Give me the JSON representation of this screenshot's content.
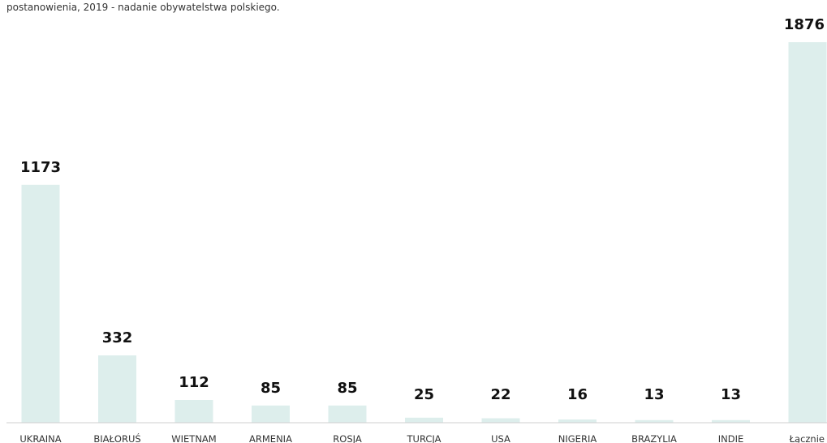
{
  "caption": "postanowienia, 2019 - nadanie obywatelstwa polskiego.",
  "colors": {
    "bar": "#ddeeec",
    "axis": "#cfcfcf",
    "value_text": "#111111",
    "label_text": "#333333"
  },
  "chart_data": {
    "type": "bar",
    "categories": [
      "UKRAINA",
      "BIAŁORUŚ",
      "WIETNAM",
      "ARMENIA",
      "ROSJA",
      "TURCJA",
      "USA",
      "NIGERIA",
      "BRAZYLIA",
      "INDIE",
      "Łącznie"
    ],
    "values": [
      1173,
      332,
      112,
      85,
      85,
      25,
      22,
      16,
      13,
      13,
      1876
    ],
    "value_labels": [
      "1173",
      "332",
      "112",
      "85",
      "85",
      "25",
      "22",
      "16",
      "13",
      "13",
      "1876"
    ],
    "title": "",
    "xlabel": "",
    "ylabel": "",
    "ylim": [
      0,
      1876
    ],
    "grid": false,
    "legend": "none"
  }
}
